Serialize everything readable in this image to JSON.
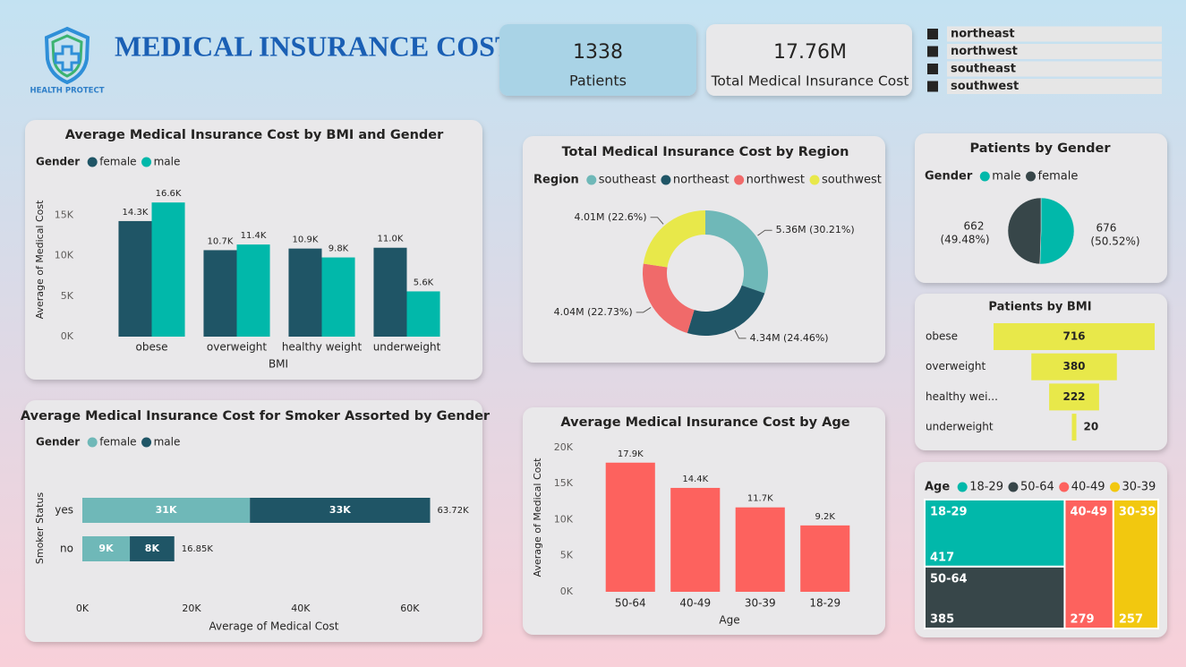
{
  "header": {
    "title": "MEDICAL INSURANCE COST",
    "logo_text": "HEALTH PROTECT"
  },
  "kpis": [
    {
      "value": 1338,
      "label": "Patients"
    },
    {
      "value": "17.76M",
      "label": "Total Medical Insurance Cost"
    }
  ],
  "slicer": {
    "items": [
      "northeast",
      "northwest",
      "southeast",
      "southwest"
    ]
  },
  "chart_data": [
    {
      "type": "bar",
      "title": "Average Medical Insurance Cost by BMI and Gender",
      "legend_title": "Gender",
      "x_label": "BMI",
      "y_label": "Average of Medical Cost",
      "categories": [
        "obese",
        "overweight",
        "healthy weight",
        "underweight"
      ],
      "series": [
        {
          "name": "female",
          "color": "#1f5566",
          "values": [
            14300,
            10700,
            10900,
            11000
          ],
          "value_labels": [
            "14.3K",
            "10.7K",
            "10.9K",
            "11.0K"
          ]
        },
        {
          "name": "male",
          "color": "#01b8aa",
          "values": [
            16600,
            11400,
            9800,
            5600
          ],
          "value_labels": [
            "16.6K",
            "11.4K",
            "9.8K",
            "5.6K"
          ]
        }
      ],
      "ylim": [
        0,
        19500
      ],
      "yticks": [
        {
          "value": 0,
          "label": "0K"
        },
        {
          "value": 5000,
          "label": "5K"
        },
        {
          "value": 10000,
          "label": "10K"
        },
        {
          "value": 15000,
          "label": "15K"
        }
      ],
      "grid": false
    },
    {
      "type": "donut",
      "title": "Total Medical Insurance Cost by Region",
      "legend_title": "Region",
      "categories": [
        "southeast",
        "northeast",
        "northwest",
        "southwest"
      ],
      "values": [
        5.36,
        4.34,
        4.04,
        4.01
      ],
      "value_labels": [
        "5.36M (30.21%)",
        "4.34M (24.46%)",
        "4.04M (22.73%)",
        "4.01M (22.6%)"
      ],
      "colors": [
        "#6fb8b8",
        "#1f5566",
        "#f06a6a",
        "#e8e84a"
      ]
    },
    {
      "type": "pie",
      "title": "Patients by Gender",
      "legend_title": "Gender",
      "categories": [
        "male",
        "female"
      ],
      "values": [
        676,
        662
      ],
      "percent_labels": [
        "(50.52%)",
        "(49.48%)"
      ],
      "colors": [
        "#01b8aa",
        "#374649"
      ]
    },
    {
      "type": "funnel",
      "title": "Patients by BMI",
      "categories": [
        "obese",
        "overweight",
        "healthy wei...",
        "underweight"
      ],
      "values": [
        716,
        380,
        222,
        20
      ],
      "color": "#e8e84a"
    },
    {
      "type": "stacked_bar_h",
      "title": "Average Medical Insurance Cost for Smoker Assorted by Gender",
      "legend_title": "Gender",
      "x_label": "Average of Medical Cost",
      "y_label": "Smoker Status",
      "categories": [
        "yes",
        "no"
      ],
      "series": [
        {
          "name": "female",
          "color": "#6fb8b8",
          "values": [
            30700,
            8700
          ],
          "value_labels": [
            "31K",
            "9K"
          ]
        },
        {
          "name": "male",
          "color": "#1f5566",
          "values": [
            33020,
            8150
          ],
          "value_labels": [
            "33K",
            "8K"
          ]
        }
      ],
      "totals": [
        63720,
        16850
      ],
      "total_labels": [
        "63.72K",
        "16.85K"
      ],
      "xlim": [
        0,
        72000
      ],
      "xticks": [
        {
          "value": 0,
          "label": "0K"
        },
        {
          "value": 20000,
          "label": "20K"
        },
        {
          "value": 40000,
          "label": "40K"
        },
        {
          "value": 60000,
          "label": "60K"
        }
      ]
    },
    {
      "type": "bar",
      "title": "Average Medical Insurance Cost by Age",
      "x_label": "Age",
      "y_label": "Average of Medical Cost",
      "categories": [
        "50-64",
        "40-49",
        "30-39",
        "18-29"
      ],
      "values": [
        17900,
        14400,
        11700,
        9200
      ],
      "value_labels": [
        "17.9K",
        "14.4K",
        "11.7K",
        "9.2K"
      ],
      "color": "#fd625e",
      "ylim": [
        0,
        20600
      ],
      "yticks": [
        {
          "value": 0,
          "label": "0K"
        },
        {
          "value": 5000,
          "label": "5K"
        },
        {
          "value": 10000,
          "label": "10K"
        },
        {
          "value": 15000,
          "label": "15K"
        },
        {
          "value": 20000,
          "label": "20K"
        }
      ],
      "grid": false
    },
    {
      "type": "treemap",
      "legend_title": "Age",
      "categories": [
        "18-29",
        "50-64",
        "40-49",
        "30-39"
      ],
      "values": [
        417,
        385,
        279,
        257
      ],
      "colors": [
        "#01b8aa",
        "#374649",
        "#fd625e",
        "#f2c80f"
      ]
    }
  ]
}
